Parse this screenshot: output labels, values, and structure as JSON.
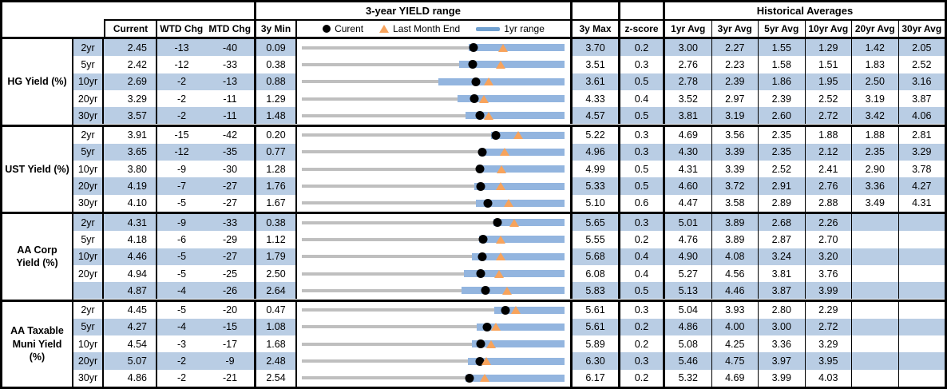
{
  "chart_data": {
    "type": "table",
    "range_section_title": "3-year YIELD range",
    "hist_section_title": "Historical Averages",
    "columns": {
      "current": "Current",
      "wtd": "WTD Chg",
      "mtd": "MTD Chg",
      "min": "3y Min",
      "max": "3y Max",
      "z": "z-score",
      "avgs": [
        "1yr Avg",
        "3yr Avg",
        "5yr Avg",
        "10yr Avg",
        "20yr Avg",
        "30yr Avg"
      ]
    },
    "legend": {
      "current": "Curent",
      "last_month_end": "Last Month End",
      "range_1yr": "1yr range"
    },
    "range_chart_encoding": "black dot = Current, orange triangle = Last Month End, blue bar = 1yr range, gray line spans 3y Min to 3y Max",
    "sections": [
      {
        "label": "HG Yield (%)",
        "rows": [
          {
            "tenor": "2yr",
            "current": "2.45",
            "wtd": "-13",
            "mtd": "-40",
            "min": "0.09",
            "max": "3.70",
            "z": "0.2",
            "avgs": [
              "3.00",
              "2.27",
              "1.55",
              "1.29",
              "1.42",
              "2.05"
            ],
            "last_month_end": 2.85,
            "range_1yr": [
              2.38,
              3.7
            ]
          },
          {
            "tenor": "5yr",
            "current": "2.42",
            "wtd": "-12",
            "mtd": "-33",
            "min": "0.38",
            "max": "3.51",
            "z": "0.3",
            "avgs": [
              "2.76",
              "2.23",
              "1.58",
              "1.51",
              "1.83",
              "2.52"
            ],
            "last_month_end": 2.75,
            "range_1yr": [
              2.25,
              3.51
            ]
          },
          {
            "tenor": "10yr",
            "current": "2.69",
            "wtd": "-2",
            "mtd": "-13",
            "min": "0.88",
            "max": "3.61",
            "z": "0.5",
            "avgs": [
              "2.78",
              "2.39",
              "1.86",
              "1.95",
              "2.50",
              "3.16"
            ],
            "last_month_end": 2.82,
            "range_1yr": [
              2.3,
              3.61
            ]
          },
          {
            "tenor": "20yr",
            "current": "3.29",
            "wtd": "-2",
            "mtd": "-11",
            "min": "1.29",
            "max": "4.33",
            "z": "0.4",
            "avgs": [
              "3.52",
              "2.97",
              "2.39",
              "2.52",
              "3.19",
              "3.87"
            ],
            "last_month_end": 3.4,
            "range_1yr": [
              3.09,
              4.33
            ]
          },
          {
            "tenor": "30yr",
            "current": "3.57",
            "wtd": "-2",
            "mtd": "-11",
            "min": "1.48",
            "max": "4.57",
            "z": "0.5",
            "avgs": [
              "3.81",
              "3.19",
              "2.60",
              "2.72",
              "3.42",
              "4.06"
            ],
            "last_month_end": 3.68,
            "range_1yr": [
              3.41,
              4.57
            ]
          }
        ]
      },
      {
        "label": "UST Yield (%)",
        "rows": [
          {
            "tenor": "2yr",
            "current": "3.91",
            "wtd": "-15",
            "mtd": "-42",
            "min": "0.20",
            "max": "5.22",
            "z": "0.3",
            "avgs": [
              "4.69",
              "3.56",
              "2.35",
              "1.88",
              "1.88",
              "2.81"
            ],
            "last_month_end": 4.33,
            "range_1yr": [
              3.81,
              5.22
            ]
          },
          {
            "tenor": "5yr",
            "current": "3.65",
            "wtd": "-12",
            "mtd": "-35",
            "min": "0.77",
            "max": "4.96",
            "z": "0.3",
            "avgs": [
              "4.30",
              "3.39",
              "2.35",
              "2.12",
              "2.35",
              "3.29"
            ],
            "last_month_end": 4.0,
            "range_1yr": [
              3.6,
              4.96
            ]
          },
          {
            "tenor": "10yr",
            "current": "3.80",
            "wtd": "-9",
            "mtd": "-30",
            "min": "1.28",
            "max": "4.99",
            "z": "0.5",
            "avgs": [
              "4.31",
              "3.39",
              "2.52",
              "2.41",
              "2.90",
              "3.78"
            ],
            "last_month_end": 4.1,
            "range_1yr": [
              3.75,
              4.99
            ]
          },
          {
            "tenor": "20yr",
            "current": "4.19",
            "wtd": "-7",
            "mtd": "-27",
            "min": "1.76",
            "max": "5.33",
            "z": "0.5",
            "avgs": [
              "4.60",
              "3.72",
              "2.91",
              "2.76",
              "3.36",
              "4.27"
            ],
            "last_month_end": 4.46,
            "range_1yr": [
              4.1,
              5.33
            ]
          },
          {
            "tenor": "30yr",
            "current": "4.10",
            "wtd": "-5",
            "mtd": "-27",
            "min": "1.67",
            "max": "5.10",
            "z": "0.6",
            "avgs": [
              "4.47",
              "3.58",
              "2.89",
              "2.88",
              "3.49",
              "4.31"
            ],
            "last_month_end": 4.37,
            "range_1yr": [
              3.94,
              5.1
            ]
          }
        ]
      },
      {
        "label": "AA Corp Yield (%)",
        "rows": [
          {
            "tenor": "2yr",
            "current": "4.31",
            "wtd": "-9",
            "mtd": "-33",
            "min": "0.38",
            "max": "5.65",
            "z": "0.3",
            "avgs": [
              "5.01",
              "3.89",
              "2.68",
              "2.26",
              "",
              ""
            ],
            "last_month_end": 4.64,
            "range_1yr": [
              4.22,
              5.65
            ]
          },
          {
            "tenor": "5yr",
            "current": "4.18",
            "wtd": "-6",
            "mtd": "-29",
            "min": "1.12",
            "max": "5.55",
            "z": "0.2",
            "avgs": [
              "4.76",
              "3.89",
              "2.87",
              "2.70",
              "",
              ""
            ],
            "last_month_end": 4.47,
            "range_1yr": [
              4.11,
              5.55
            ]
          },
          {
            "tenor": "10yr",
            "current": "4.46",
            "wtd": "-5",
            "mtd": "-27",
            "min": "1.79",
            "max": "5.68",
            "z": "0.4",
            "avgs": [
              "4.90",
              "4.08",
              "3.24",
              "3.20",
              "",
              ""
            ],
            "last_month_end": 4.73,
            "range_1yr": [
              4.31,
              5.68
            ]
          },
          {
            "tenor": "20yr",
            "current": "4.94",
            "wtd": "-5",
            "mtd": "-25",
            "min": "2.50",
            "max": "6.08",
            "z": "0.4",
            "avgs": [
              "5.27",
              "4.56",
              "3.81",
              "3.76",
              "",
              ""
            ],
            "last_month_end": 5.19,
            "range_1yr": [
              4.71,
              6.08
            ]
          },
          {
            "tenor": "",
            "current": "4.87",
            "wtd": "-4",
            "mtd": "-26",
            "min": "2.64",
            "max": "5.83",
            "z": "0.5",
            "avgs": [
              "5.13",
              "4.46",
              "3.87",
              "3.99",
              "",
              ""
            ],
            "last_month_end": 5.13,
            "range_1yr": [
              4.58,
              5.83
            ]
          }
        ]
      },
      {
        "label": "AA Taxable Muni Yield (%)",
        "rows": [
          {
            "tenor": "2yr",
            "current": "4.45",
            "wtd": "-5",
            "mtd": "-20",
            "min": "0.47",
            "max": "5.61",
            "z": "0.3",
            "avgs": [
              "5.04",
              "3.93",
              "2.80",
              "2.29",
              "",
              ""
            ],
            "last_month_end": 4.65,
            "range_1yr": [
              4.23,
              5.61
            ]
          },
          {
            "tenor": "5yr",
            "current": "4.27",
            "wtd": "-4",
            "mtd": "-15",
            "min": "1.08",
            "max": "5.61",
            "z": "0.2",
            "avgs": [
              "4.86",
              "4.00",
              "3.00",
              "2.72",
              "",
              ""
            ],
            "last_month_end": 4.42,
            "range_1yr": [
              4.1,
              5.61
            ]
          },
          {
            "tenor": "10yr",
            "current": "4.54",
            "wtd": "-3",
            "mtd": "-17",
            "min": "1.68",
            "max": "5.89",
            "z": "0.2",
            "avgs": [
              "5.08",
              "4.25",
              "3.36",
              "3.29",
              "",
              ""
            ],
            "last_month_end": 4.71,
            "range_1yr": [
              4.4,
              5.89
            ]
          },
          {
            "tenor": "20yr",
            "current": "5.07",
            "wtd": "-2",
            "mtd": "-9",
            "min": "2.48",
            "max": "6.30",
            "z": "0.3",
            "avgs": [
              "5.46",
              "4.75",
              "3.97",
              "3.95",
              "",
              ""
            ],
            "last_month_end": 5.16,
            "range_1yr": [
              4.9,
              6.3
            ]
          },
          {
            "tenor": "30yr",
            "current": "4.86",
            "wtd": "-2",
            "mtd": "-21",
            "min": "2.54",
            "max": "6.17",
            "z": "0.2",
            "avgs": [
              "5.32",
              "4.69",
              "3.99",
              "4.03",
              "",
              ""
            ],
            "last_month_end": 5.07,
            "range_1yr": [
              4.8,
              6.17
            ]
          }
        ]
      }
    ]
  },
  "colors": {
    "band_blue": "#B9CDE4",
    "bar_blue": "#93B5DF",
    "legend_line_blue": "#70A0D0",
    "track_gray": "#BFBFBF",
    "marker_black": "#000000",
    "triangle_orange": "#F7A35C",
    "border_black": "#000000"
  }
}
